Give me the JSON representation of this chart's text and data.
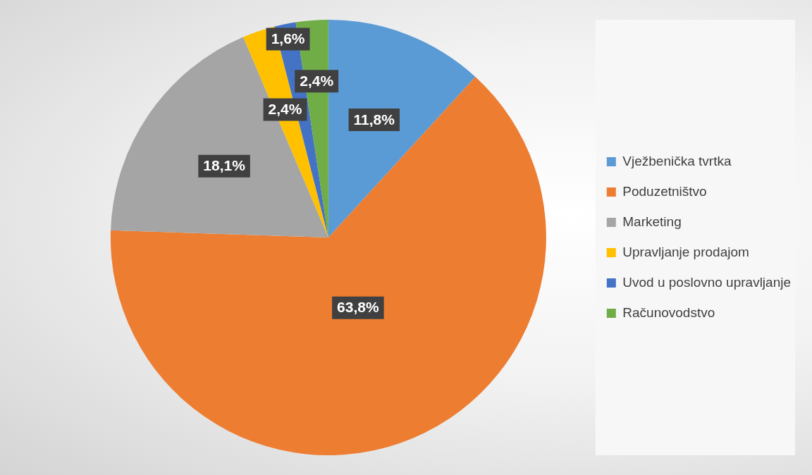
{
  "chart_data": {
    "type": "pie",
    "categories": [
      "Vježbenička tvrtka",
      "Poduzetništvo",
      "Marketing",
      "Upravljanje prodajom",
      "Uvod u poslovno upravljanje",
      "Računovodstvo"
    ],
    "values": [
      11.8,
      63.8,
      18.1,
      2.4,
      1.6,
      2.4
    ],
    "colors": [
      "#5b9bd5",
      "#ed7d31",
      "#a5a5a5",
      "#ffc000",
      "#4472c4",
      "#70ad47"
    ],
    "value_labels": [
      "11,8%",
      "63,8%",
      "18,1%",
      "2,4%",
      "1,6%",
      "2,4%"
    ],
    "legend": "right"
  }
}
